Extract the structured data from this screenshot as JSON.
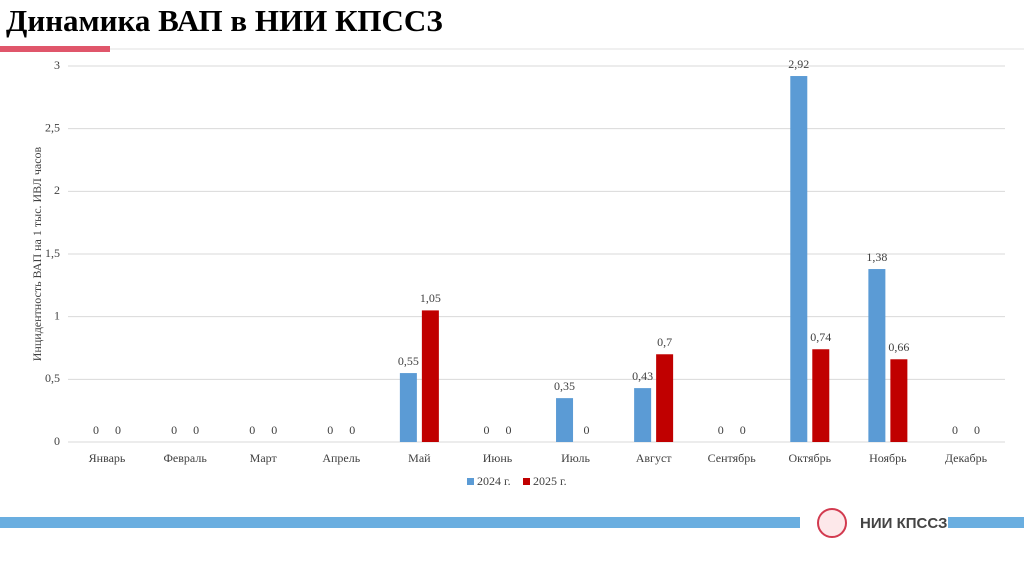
{
  "header": {
    "title": "Динамика ВАП в НИИ КПССЗ"
  },
  "footer": {
    "logo_text": "НИИ КПССЗ"
  },
  "chart_data": {
    "type": "bar",
    "y_label": "Инцидентность ВАП на 1 тыс. ИВЛ часов",
    "categories": [
      "Январь",
      "Февраль",
      "Март",
      "Апрель",
      "Май",
      "Июнь",
      "Июль",
      "Август",
      "Сентябрь",
      "Октябрь",
      "Ноябрь",
      "Декабрь"
    ],
    "series": [
      {
        "name": "2024 г.",
        "color": "#5b9bd5",
        "values": [
          0,
          0,
          0,
          0,
          0.55,
          0,
          0.35,
          0.43,
          0,
          2.92,
          1.38,
          0
        ],
        "value_labels": [
          "0",
          "0",
          "0",
          "0",
          "0,55",
          "0",
          "0,35",
          "0,43",
          "0",
          "2,92",
          "1,38",
          "0"
        ]
      },
      {
        "name": "2025 г.",
        "color": "#c00000",
        "values": [
          0,
          0,
          0,
          0,
          1.05,
          0,
          0,
          0.7,
          0,
          0.74,
          0.66,
          0
        ],
        "value_labels": [
          "0",
          "0",
          "0",
          "0",
          "1,05",
          "0",
          "0",
          "0,7",
          "0",
          "0,74",
          "0,66",
          "0"
        ]
      }
    ],
    "ylim": [
      0,
      3
    ],
    "yticks": [
      0,
      {
        "value": 0.5,
        "label": "0,5"
      },
      1,
      {
        "value": 1.5,
        "label": "1,5"
      },
      2,
      {
        "value": 2.5,
        "label": "2,5"
      },
      3
    ],
    "grid": true
  }
}
